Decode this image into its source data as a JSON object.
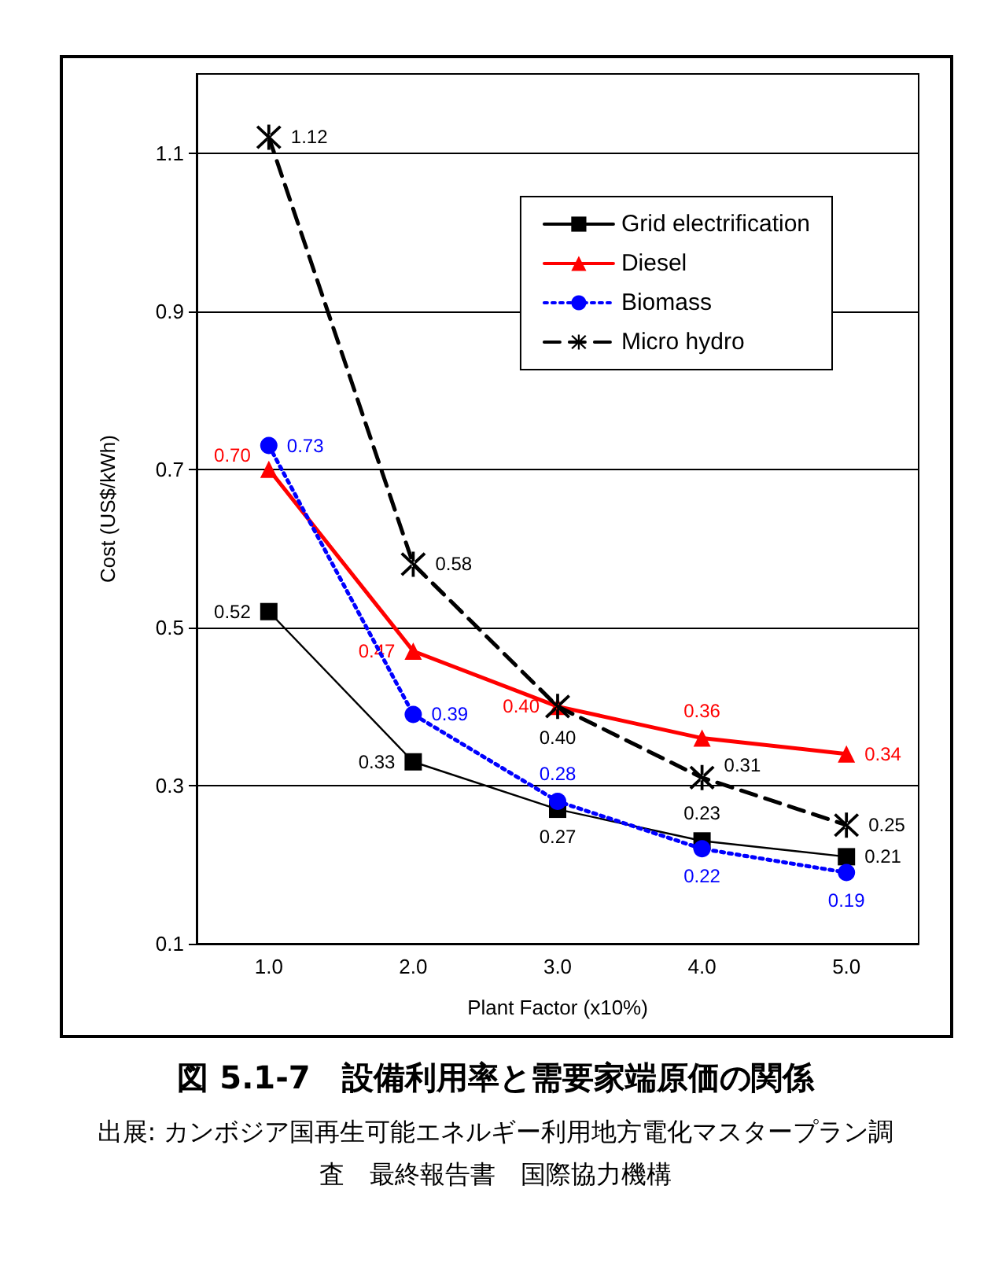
{
  "chart_data": {
    "type": "line",
    "title": "図 5.1-7　設備利用率と需要家端原価の関係",
    "annotations": [
      "出展: カンボジア国再生可能エネルギー利用地方電化マスタープラン調査　最終報告書　国際協力機構"
    ],
    "xlabel": "Plant Factor (x10%)",
    "ylabel": "Cost (US$/kWh)",
    "categories": [
      "1.0",
      "2.0",
      "3.0",
      "4.0",
      "5.0"
    ],
    "ylim": [
      0.1,
      1.2
    ],
    "yticks": [
      0.1,
      0.3,
      0.5,
      0.7,
      0.9,
      1.1
    ],
    "grid": "y",
    "legend": "top right",
    "series": [
      {
        "name": "Grid electrification",
        "color": "#000000",
        "marker": "square",
        "line_style": "solid",
        "values": [
          0.52,
          0.33,
          0.27,
          0.23,
          0.21
        ],
        "value_labels": [
          "0.52",
          "0.33",
          "0.27",
          "0.23",
          "0.21"
        ]
      },
      {
        "name": "Diesel",
        "color": "#ff0000",
        "marker": "triangle",
        "line_style": "solid",
        "values": [
          0.7,
          0.47,
          0.4,
          0.36,
          0.34
        ],
        "value_labels": [
          "0.70",
          "0.47",
          "0.40",
          "0.36",
          "0.34"
        ]
      },
      {
        "name": "Biomass",
        "color": "#0000ff",
        "marker": "circle",
        "line_style": "dotted",
        "values": [
          0.73,
          0.39,
          0.28,
          0.22,
          0.19
        ],
        "value_labels": [
          "0.73",
          "0.39",
          "0.28",
          "0.22",
          "0.19"
        ]
      },
      {
        "name": "Micro hydro",
        "color": "#000000",
        "marker": "cross",
        "line_style": "dashed",
        "values": [
          1.12,
          0.58,
          0.4,
          0.31,
          0.25
        ],
        "value_labels": [
          "1.12",
          "0.58",
          "0.40",
          "0.31",
          "0.25"
        ]
      }
    ]
  }
}
